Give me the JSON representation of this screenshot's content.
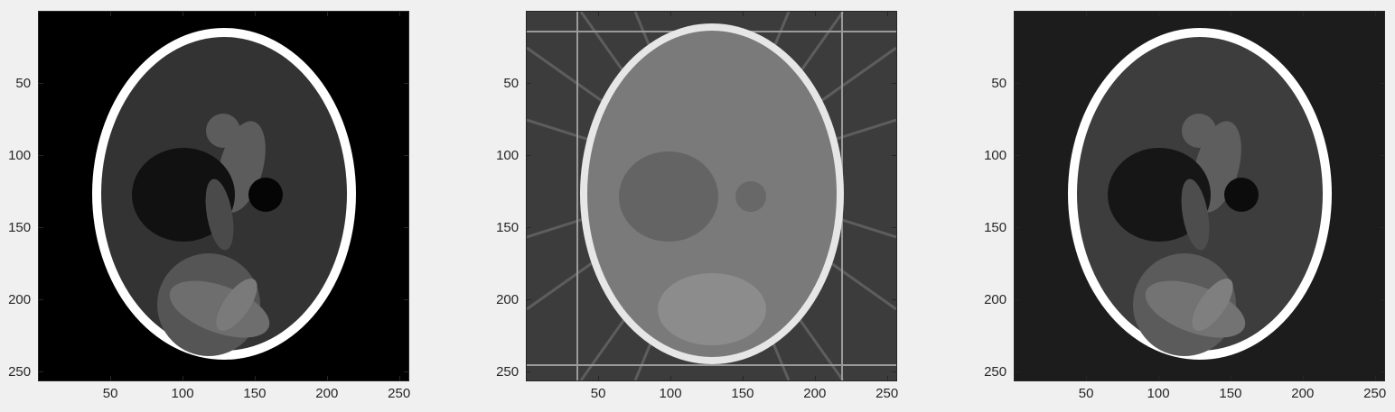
{
  "figure": {
    "background": "#f0f0f0",
    "panels": [
      {
        "id": "original",
        "background": "#000000",
        "shell_fill": "#ffffff",
        "brain_fill": "#333333",
        "xticks": [
          "50",
          "100",
          "150",
          "200",
          "250"
        ],
        "yticks": [
          "50",
          "100",
          "150",
          "200",
          "250"
        ]
      },
      {
        "id": "backprojection",
        "background": "#3c3c3c",
        "shell_fill": "#e6e6e6",
        "brain_fill": "#7a7a7a",
        "xticks": [
          "50",
          "100",
          "150",
          "200",
          "250"
        ],
        "yticks": [
          "50",
          "100",
          "150",
          "200",
          "250"
        ]
      },
      {
        "id": "reconstruction",
        "background": "#1c1c1c",
        "shell_fill": "#ffffff",
        "brain_fill": "#3d3d3d",
        "xticks": [
          "50",
          "100",
          "150",
          "200",
          "250"
        ],
        "yticks": [
          "50",
          "100",
          "150",
          "200",
          "250"
        ]
      }
    ]
  }
}
